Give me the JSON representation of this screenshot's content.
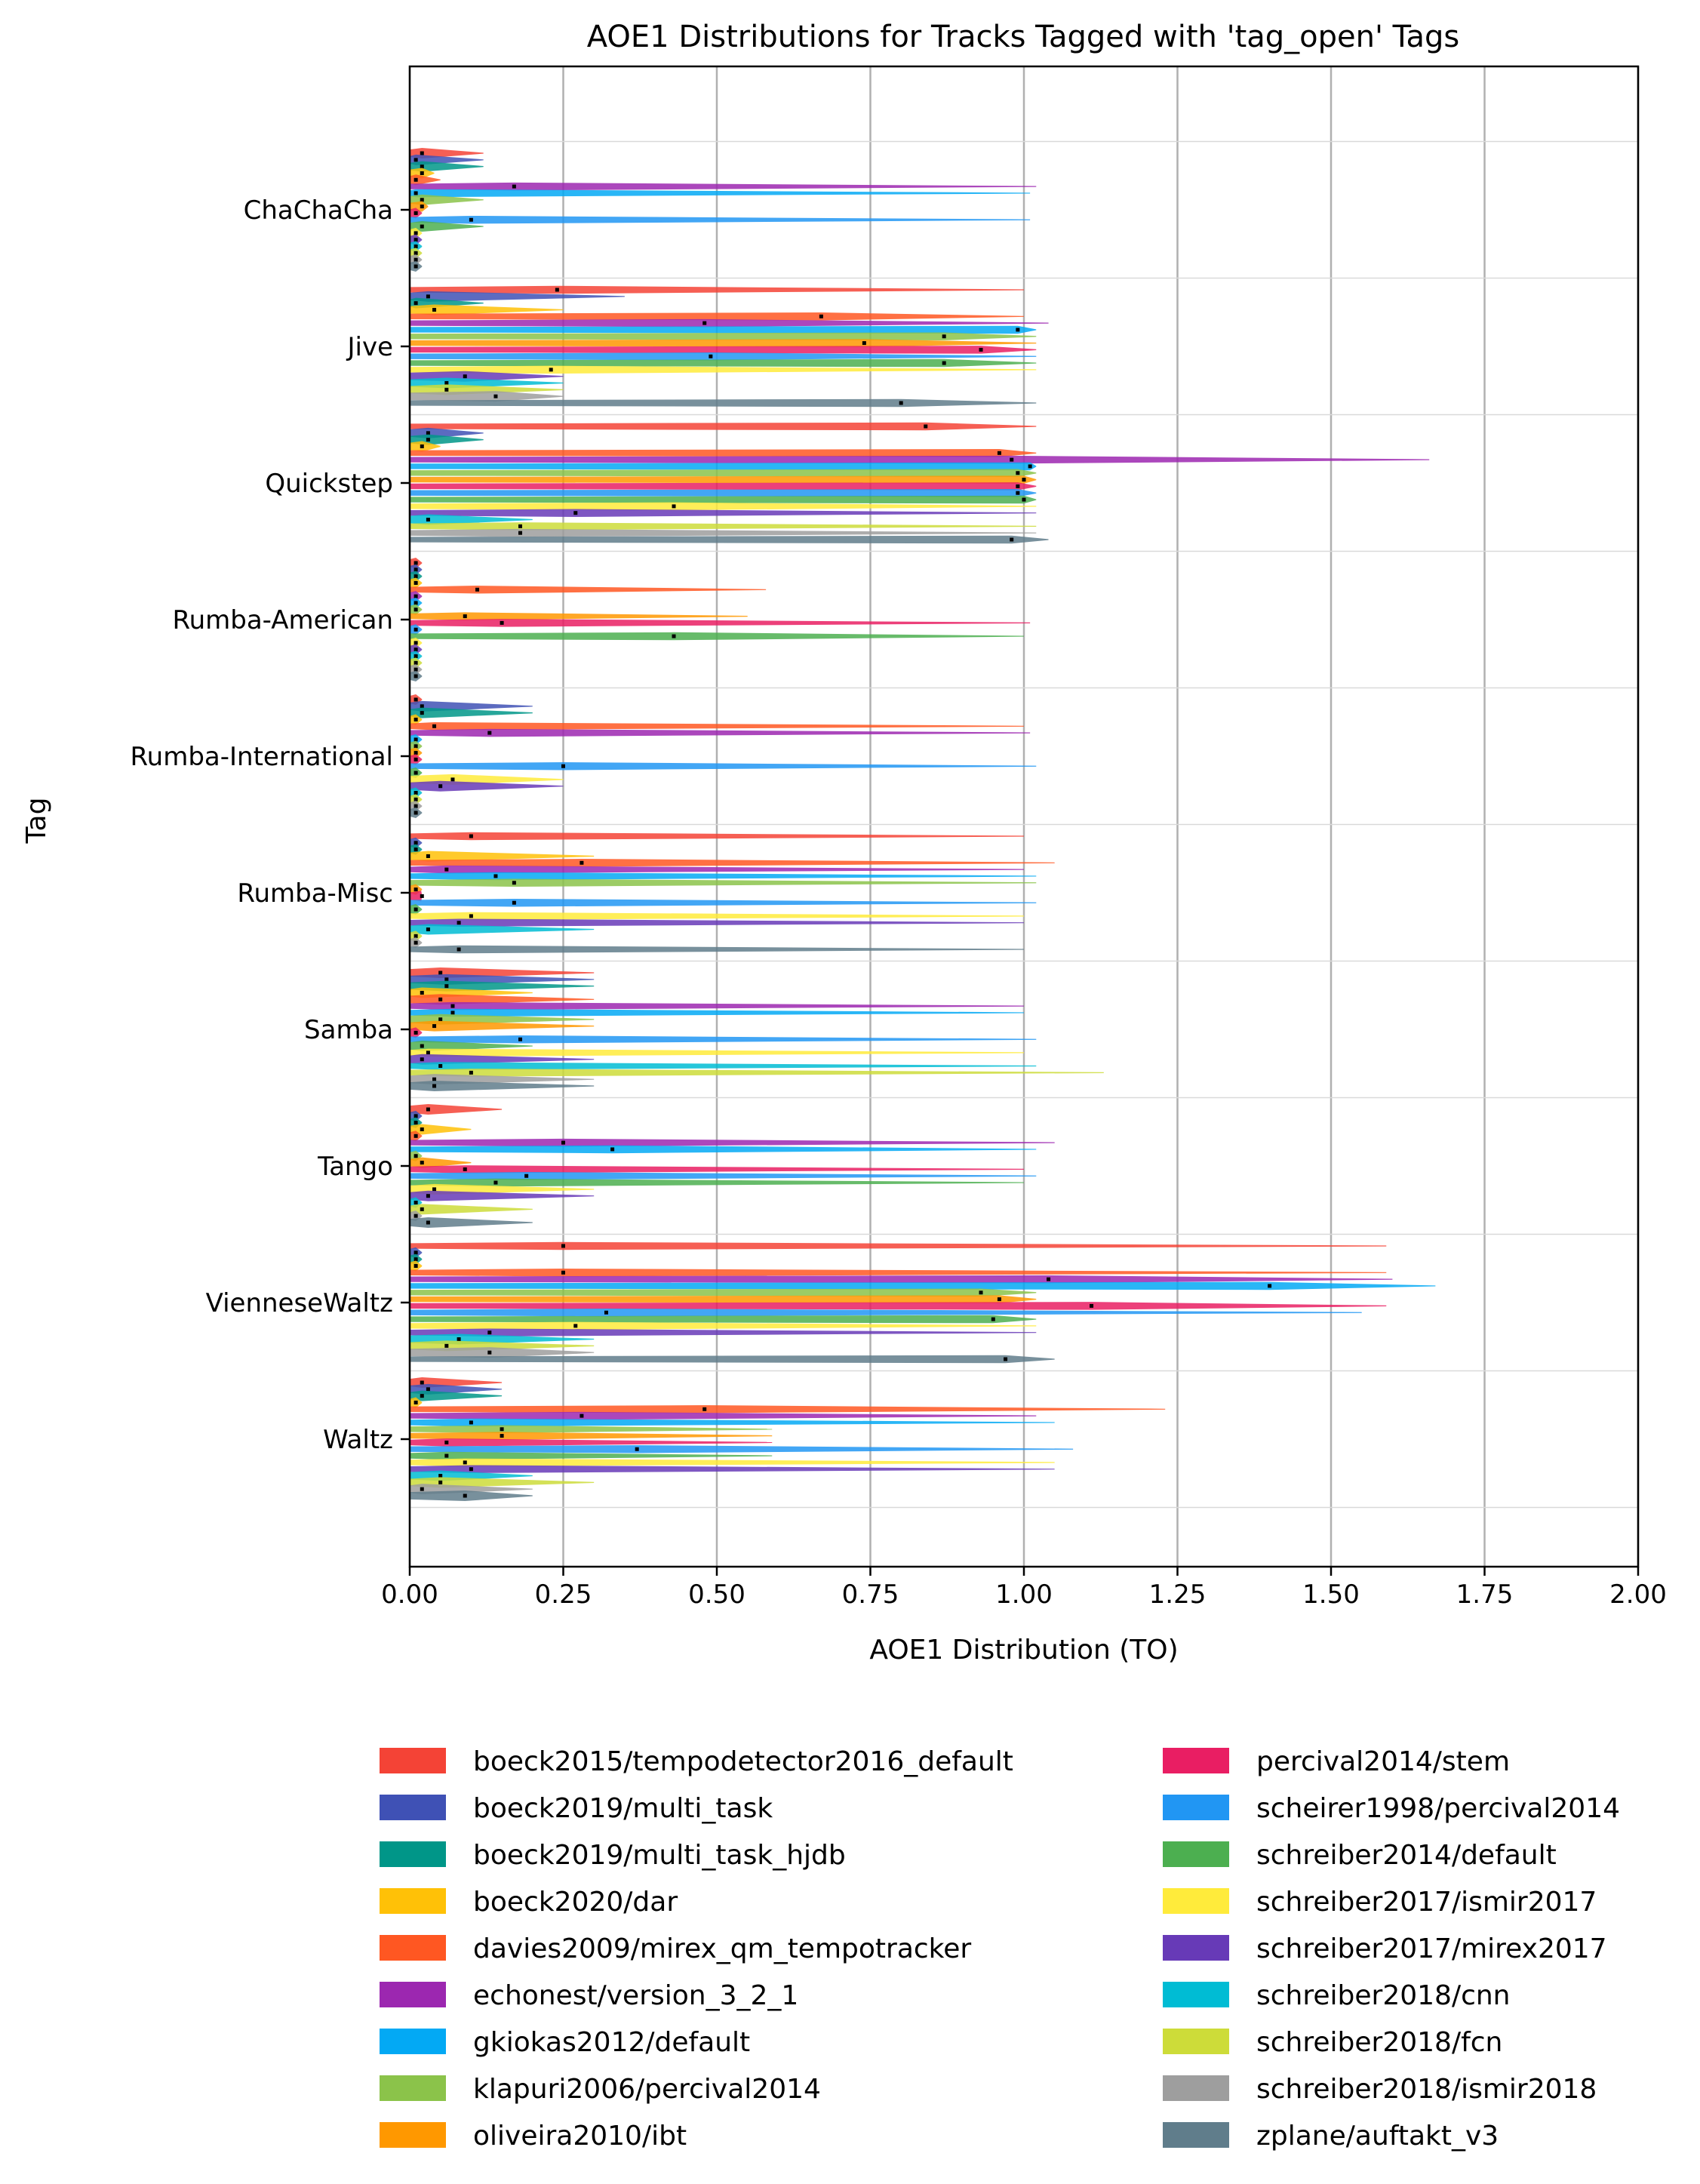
{
  "chart_data": {
    "type": "violin",
    "title": "AOE1 Distributions for Tracks Tagged with 'tag_open' Tags",
    "xlabel": "AOE1 Distribution (TO)",
    "ylabel": "Tag",
    "xlim": [
      0.0,
      2.0
    ],
    "xticks": [
      "0.00",
      "0.25",
      "0.50",
      "0.75",
      "1.00",
      "1.25",
      "1.50",
      "1.75",
      "2.00"
    ],
    "xgrid": true,
    "ygrid": true,
    "legend_position": "below plot, two columns",
    "tags": [
      "ChaChaCha",
      "Jive",
      "Quickstep",
      "Rumba-American",
      "Rumba-International",
      "Rumba-Misc",
      "Samba",
      "Tango",
      "VienneseWaltz",
      "Waltz"
    ],
    "series": [
      {
        "name": "boeck2015/tempodetector2016_default",
        "color": "#f44336"
      },
      {
        "name": "boeck2019/multi_task",
        "color": "#3f51b5"
      },
      {
        "name": "boeck2019/multi_task_hjdb",
        "color": "#009688"
      },
      {
        "name": "boeck2020/dar",
        "color": "#ffc107"
      },
      {
        "name": "davies2009/mirex_qm_tempotracker",
        "color": "#ff5722"
      },
      {
        "name": "echonest/version_3_2_1",
        "color": "#9c27b0"
      },
      {
        "name": "gkiokas2012/default",
        "color": "#03a9f4"
      },
      {
        "name": "klapuri2006/percival2014",
        "color": "#8bc34a"
      },
      {
        "name": "oliveira2010/ibt",
        "color": "#ff9800"
      },
      {
        "name": "percival2014/stem",
        "color": "#e91e63"
      },
      {
        "name": "scheirer1998/percival2014",
        "color": "#2196f3"
      },
      {
        "name": "schreiber2014/default",
        "color": "#4caf50"
      },
      {
        "name": "schreiber2017/ismir2017",
        "color": "#ffeb3b"
      },
      {
        "name": "schreiber2017/mirex2017",
        "color": "#673ab7"
      },
      {
        "name": "schreiber2018/cnn",
        "color": "#00bcd4"
      },
      {
        "name": "schreiber2018/fcn",
        "color": "#cddc39"
      },
      {
        "name": "schreiber2018/ismir2018",
        "color": "#9e9e9e"
      },
      {
        "name": "zplane/auftakt_v3",
        "color": "#607d8b"
      }
    ],
    "medians": [
      [
        0.02,
        0.01,
        0.02,
        0.02,
        0.01,
        0.17,
        0.01,
        0.02,
        0.02,
        0.01,
        0.1,
        0.02,
        0.01,
        0.01,
        0.01,
        0.01,
        0.01,
        0.01
      ],
      [
        0.24,
        0.03,
        0.01,
        0.04,
        0.67,
        0.48,
        0.99,
        0.87,
        0.74,
        0.93,
        0.49,
        0.87,
        0.23,
        0.09,
        0.06,
        0.06,
        0.14,
        0.8
      ],
      [
        0.84,
        0.03,
        0.03,
        0.02,
        0.96,
        0.98,
        1.01,
        0.99,
        1.0,
        0.99,
        0.99,
        1.0,
        0.43,
        0.27,
        0.03,
        0.18,
        0.18,
        0.98
      ],
      [
        0.01,
        0.01,
        0.01,
        0.01,
        0.11,
        0.01,
        0.01,
        0.01,
        0.09,
        0.15,
        0.01,
        0.43,
        0.01,
        0.01,
        0.01,
        0.01,
        0.01,
        0.01
      ],
      [
        0.01,
        0.02,
        0.02,
        0.01,
        0.04,
        0.13,
        0.01,
        0.01,
        0.01,
        0.01,
        0.25,
        0.01,
        0.07,
        0.05,
        0.01,
        0.01,
        0.01,
        0.01
      ],
      [
        0.1,
        0.01,
        0.01,
        0.03,
        0.28,
        0.06,
        0.14,
        0.17,
        0.01,
        0.02,
        0.17,
        0.01,
        0.1,
        0.08,
        0.03,
        0.01,
        0.01,
        0.08
      ],
      [
        0.05,
        0.06,
        0.06,
        0.02,
        0.05,
        0.07,
        0.07,
        0.05,
        0.04,
        0.01,
        0.18,
        0.02,
        0.03,
        0.02,
        0.05,
        0.1,
        0.04,
        0.04
      ],
      [
        0.03,
        0.01,
        0.01,
        0.02,
        0.01,
        0.25,
        0.33,
        0.01,
        0.02,
        0.09,
        0.19,
        0.14,
        0.04,
        0.03,
        0.01,
        0.02,
        0.01,
        0.03
      ],
      [
        0.25,
        0.01,
        0.01,
        0.01,
        0.25,
        1.04,
        1.4,
        0.93,
        0.96,
        1.11,
        0.32,
        0.95,
        0.27,
        0.13,
        0.08,
        0.06,
        0.13,
        0.97
      ],
      [
        0.02,
        0.03,
        0.02,
        0.01,
        0.48,
        0.28,
        0.1,
        0.15,
        0.15,
        0.06,
        0.37,
        0.06,
        0.09,
        0.1,
        0.05,
        0.05,
        0.02,
        0.09
      ]
    ],
    "max_values": [
      [
        0.12,
        0.12,
        0.12,
        0.04,
        0.05,
        1.02,
        1.01,
        0.12,
        0.03,
        0.02,
        1.01,
        0.12,
        0.02,
        0.02,
        0.02,
        0.02,
        0.02,
        0.02
      ],
      [
        1.0,
        0.35,
        0.12,
        0.25,
        1.0,
        1.04,
        1.02,
        1.02,
        1.02,
        1.02,
        1.02,
        1.02,
        1.02,
        0.25,
        0.25,
        0.25,
        0.25,
        1.02
      ],
      [
        1.02,
        0.12,
        0.12,
        0.05,
        1.02,
        1.66,
        1.02,
        1.02,
        1.02,
        1.02,
        1.02,
        1.02,
        1.02,
        1.02,
        0.2,
        1.02,
        1.02,
        1.04
      ],
      [
        0.02,
        0.02,
        0.02,
        0.02,
        0.58,
        0.02,
        0.02,
        0.02,
        0.55,
        1.01,
        0.02,
        1.0,
        0.02,
        0.02,
        0.02,
        0.02,
        0.02,
        0.02
      ],
      [
        0.02,
        0.2,
        0.2,
        0.02,
        1.0,
        1.01,
        0.02,
        0.02,
        0.02,
        0.02,
        1.02,
        0.02,
        0.25,
        0.25,
        0.02,
        0.02,
        0.02,
        0.02
      ],
      [
        1.0,
        0.02,
        0.02,
        0.3,
        1.05,
        1.0,
        1.02,
        1.02,
        0.02,
        0.02,
        1.02,
        0.02,
        1.0,
        1.0,
        0.3,
        0.02,
        0.02,
        1.0
      ],
      [
        0.3,
        0.3,
        0.3,
        0.2,
        0.3,
        1.0,
        1.0,
        0.3,
        0.3,
        0.02,
        1.02,
        0.2,
        1.0,
        0.3,
        1.02,
        1.13,
        0.3,
        0.3
      ],
      [
        0.15,
        0.02,
        0.02,
        0.1,
        0.02,
        1.05,
        1.02,
        0.02,
        0.1,
        1.0,
        1.02,
        1.0,
        0.3,
        0.3,
        0.02,
        0.2,
        0.02,
        0.2
      ],
      [
        1.59,
        0.02,
        0.02,
        0.02,
        1.59,
        1.6,
        1.67,
        1.02,
        1.02,
        1.59,
        1.55,
        1.02,
        1.02,
        1.02,
        0.3,
        0.3,
        0.3,
        1.05
      ],
      [
        0.15,
        0.15,
        0.15,
        0.02,
        1.23,
        1.02,
        1.05,
        0.59,
        0.59,
        0.59,
        1.08,
        0.59,
        1.05,
        1.05,
        0.2,
        0.3,
        0.2,
        0.2
      ]
    ]
  },
  "legend": {
    "items": [
      "boeck2015/tempodetector2016_default",
      "boeck2019/multi_task",
      "boeck2019/multi_task_hjdb",
      "boeck2020/dar",
      "davies2009/mirex_qm_tempotracker",
      "echonest/version_3_2_1",
      "gkiokas2012/default",
      "klapuri2006/percival2014",
      "oliveira2010/ibt",
      "percival2014/stem",
      "scheirer1998/percival2014",
      "schreiber2014/default",
      "schreiber2017/ismir2017",
      "schreiber2017/mirex2017",
      "schreiber2018/cnn",
      "schreiber2018/fcn",
      "schreiber2018/ismir2018",
      "zplane/auftakt_v3"
    ]
  }
}
